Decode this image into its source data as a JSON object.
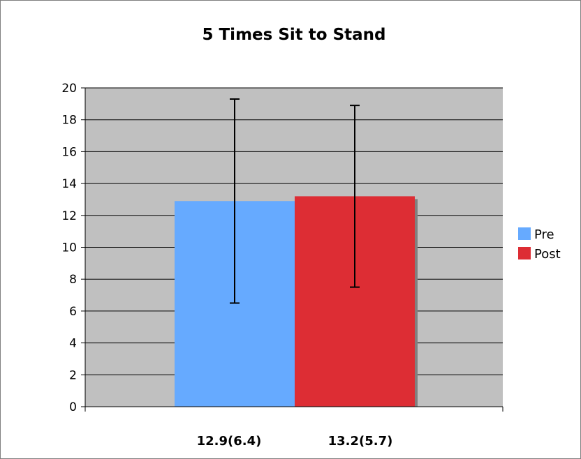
{
  "chart_data": {
    "type": "bar",
    "title": "5 Times Sit to Stand",
    "xlabel": "",
    "ylabel": "",
    "ylim": [
      0,
      20
    ],
    "yticks": [
      0,
      2,
      4,
      6,
      8,
      10,
      12,
      14,
      16,
      18,
      20
    ],
    "grid": true,
    "plot_background": "#c0c0c0",
    "legend_position": "right",
    "series": [
      {
        "name": "Pre",
        "color": "#66aaff",
        "value": 12.9,
        "error_low": 6.5,
        "error_high": 19.3,
        "label": "12.9(6.4)"
      },
      {
        "name": "Post",
        "color": "#dd2d34",
        "value": 13.2,
        "error_low": 7.5,
        "error_high": 18.9,
        "label": "13.2(5.7)"
      }
    ]
  }
}
